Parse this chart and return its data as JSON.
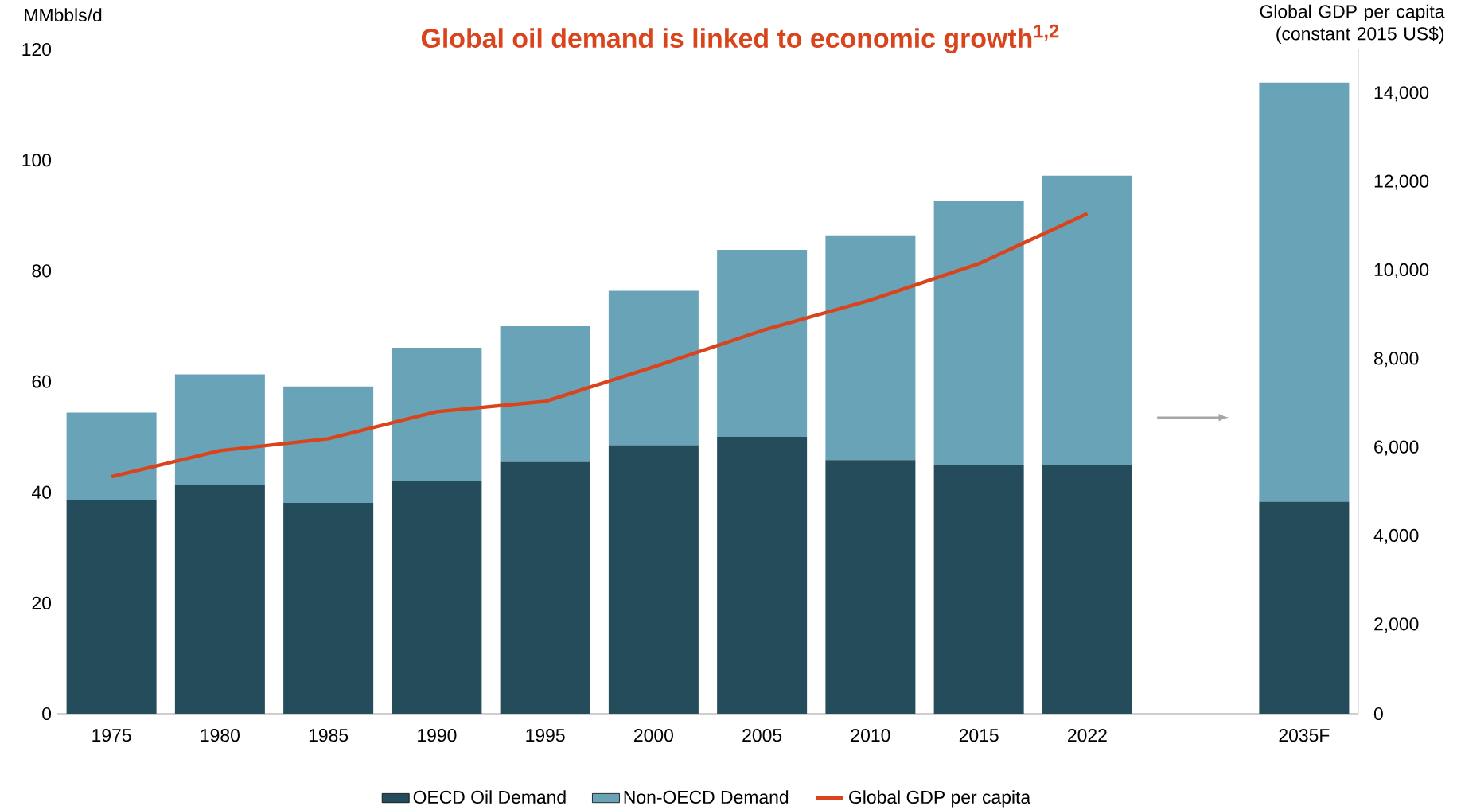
{
  "chart_data": {
    "type": "bar",
    "title": "Global oil demand is linked to economic growth$^{1,2}$",
    "ylabel": "MMbbls/d",
    "y2label": "Global GDP per capita (constant 2015 US$)",
    "categories": [
      "1975",
      "1980",
      "1985",
      "1990",
      "1995",
      "2000",
      "2005",
      "2010",
      "2015",
      "2022",
      null,
      "2035F"
    ],
    "stacked": true,
    "series": [
      {
        "name": "OECD Oil Demand",
        "color": "#254c5a",
        "values": [
          38.6,
          41.3,
          38.1,
          42.1,
          45.5,
          48.5,
          50.0,
          45.8,
          45.0,
          45.0,
          null,
          38.3
        ]
      },
      {
        "name": "Non-OECD Demand",
        "color": "#68a3b8",
        "values": [
          15.8,
          20.0,
          21.0,
          24.0,
          24.5,
          27.9,
          33.8,
          40.6,
          47.6,
          52.2,
          null,
          75.7
        ]
      },
      {
        "name": "Global GDP per capita",
        "type": "line",
        "axis": "y2",
        "color": "#d9441c",
        "values": [
          5350,
          5940,
          6210,
          6820,
          7050,
          7830,
          8650,
          9340,
          10160,
          11290,
          null,
          null
        ]
      }
    ],
    "ylim": [
      0,
      120
    ],
    "yticks": [
      0,
      20,
      40,
      60,
      80,
      100,
      120
    ],
    "y2lim": [
      0,
      15000
    ],
    "y2ticks": [
      0,
      {
        "value": 2000,
        "label": "2,000"
      },
      {
        "value": 4000,
        "label": "4,000"
      },
      {
        "value": 6000,
        "label": "6,000"
      },
      {
        "value": 8000,
        "label": "8,000"
      },
      {
        "value": 10000,
        "label": "10,000"
      },
      {
        "value": 12000,
        "label": "12,000"
      },
      {
        "value": 14000,
        "label": "14,000"
      }
    ],
    "legend": "bottom"
  }
}
